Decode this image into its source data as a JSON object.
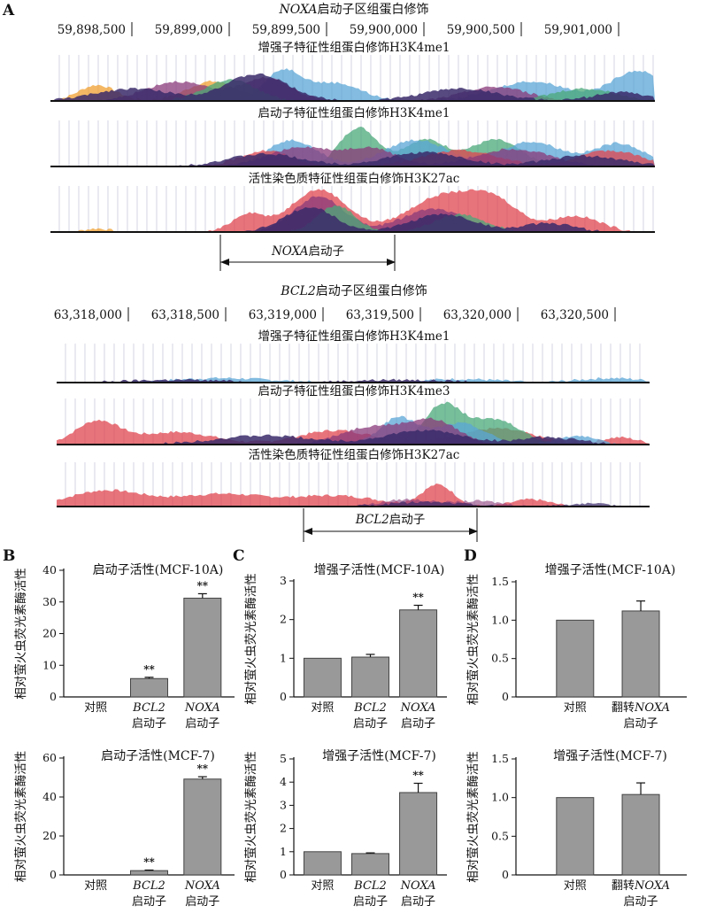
{
  "panel_a": {
    "label": "A",
    "noxa": {
      "title_italic": "NOXA",
      "title_rest": "启动子区组蛋白修饰",
      "coords": [
        "59,898,500",
        "59,899,000",
        "59,899,500",
        "59,900,000",
        "59,900,500",
        "59,901,000"
      ],
      "tracks": [
        {
          "title": "增强子特征性组蛋白修饰H3K4me1"
        },
        {
          "title": "启动子特征性组蛋白修饰H3K4me1"
        },
        {
          "title": "活性染色质特征性组蛋白修饰H3K27ac"
        }
      ],
      "promoter_italic": "NOXA",
      "promoter_rest": "启动子"
    },
    "bcl2": {
      "title_italic": "BCL2",
      "title_rest": "启动子区组蛋白修饰",
      "coords": [
        "63,318,000",
        "63,318,500",
        "63,319,000",
        "63,319,500",
        "63,320,000",
        "63,320,500"
      ],
      "tracks": [
        {
          "title": "增强子特征性组蛋白修饰H3K4me1"
        },
        {
          "title": "启动子特征性组蛋白修饰H3K4me3"
        },
        {
          "title": "活性染色质特征性组蛋白修饰H3K27ac"
        }
      ],
      "promoter_italic": "BCL2",
      "promoter_rest": "启动子"
    },
    "track_colors": [
      "#e0454f",
      "#4aa87a",
      "#5aa6d6",
      "#3a2a6a",
      "#8a3a7a",
      "#f0a030"
    ]
  },
  "chart_data": [
    {
      "type": "bar",
      "panel": "B",
      "title": "启动子活性(MCF-10A)",
      "ylabel": "相对萤火虫荧光素酶活性",
      "categories": [
        {
          "italic": "",
          "line1": "对照",
          "line2": ""
        },
        {
          "italic": "BCL2",
          "line1": "",
          "line2": "启动子"
        },
        {
          "italic": "NOXA",
          "line1": "",
          "line2": "启动子"
        }
      ],
      "values": [
        0,
        5.8,
        31.2
      ],
      "errors": [
        0,
        0.4,
        1.4
      ],
      "significance": [
        "",
        "**",
        "**"
      ],
      "ylim": [
        0,
        40
      ],
      "yticks": [
        0,
        10,
        20,
        30,
        40
      ]
    },
    {
      "type": "bar",
      "panel": "",
      "title": "启动子活性(MCF-7)",
      "ylabel": "相对萤火虫荧光素酶活性",
      "categories": [
        {
          "italic": "",
          "line1": "对照",
          "line2": ""
        },
        {
          "italic": "BCL2",
          "line1": "",
          "line2": "启动子"
        },
        {
          "italic": "NOXA",
          "line1": "",
          "line2": "启动子"
        }
      ],
      "values": [
        0,
        2.2,
        49.2
      ],
      "errors": [
        0,
        0.3,
        1.2
      ],
      "significance": [
        "",
        "**",
        "**"
      ],
      "ylim": [
        0,
        60
      ],
      "yticks": [
        0,
        20,
        40,
        60
      ]
    },
    {
      "type": "bar",
      "panel": "C",
      "title": "增强子活性(MCF-10A)",
      "ylabel": "相对萤火虫荧光素酶活性",
      "categories": [
        {
          "italic": "",
          "line1": "对照",
          "line2": ""
        },
        {
          "italic": "BCL2",
          "line1": "",
          "line2": "启动子"
        },
        {
          "italic": "NOXA",
          "line1": "",
          "line2": "启动子"
        }
      ],
      "values": [
        1.0,
        1.03,
        2.25
      ],
      "errors": [
        0,
        0.07,
        0.12
      ],
      "significance": [
        "",
        "",
        "**"
      ],
      "ylim": [
        0,
        3
      ],
      "yticks": [
        0,
        1,
        2,
        3
      ]
    },
    {
      "type": "bar",
      "panel": "",
      "title": "增强子活性(MCF-7)",
      "ylabel": "相对萤火虫荧光素酶活性",
      "categories": [
        {
          "italic": "",
          "line1": "对照",
          "line2": ""
        },
        {
          "italic": "BCL2",
          "line1": "",
          "line2": "启动子"
        },
        {
          "italic": "NOXA",
          "line1": "",
          "line2": "启动子"
        }
      ],
      "values": [
        1.0,
        0.92,
        3.55
      ],
      "errors": [
        0,
        0.03,
        0.4
      ],
      "significance": [
        "",
        "",
        "**"
      ],
      "ylim": [
        0,
        5
      ],
      "yticks": [
        0,
        1,
        2,
        3,
        4,
        5
      ]
    },
    {
      "type": "bar",
      "panel": "D",
      "title": "增强子活性(MCF-10A)",
      "ylabel": "相对萤火虫荧光素酶活性",
      "categories": [
        {
          "italic": "",
          "line1": "对照",
          "line2": ""
        },
        {
          "italic": "NOXA",
          "line1": "翻转",
          "line2": "启动子"
        }
      ],
      "values": [
        1.0,
        1.12
      ],
      "errors": [
        0,
        0.13
      ],
      "significance": [
        "",
        ""
      ],
      "ylim": [
        0,
        1.5
      ],
      "yticks": [
        0,
        0.5,
        1.0,
        1.5
      ]
    },
    {
      "type": "bar",
      "panel": "",
      "title": "增强子活性(MCF-7)",
      "ylabel": "相对萤火虫荧光素酶活性",
      "categories": [
        {
          "italic": "",
          "line1": "对照",
          "line2": ""
        },
        {
          "italic": "NOXA",
          "line1": "翻转",
          "line2": "启动子"
        }
      ],
      "values": [
        1.0,
        1.04
      ],
      "errors": [
        0,
        0.15
      ],
      "significance": [
        "",
        ""
      ],
      "ylim": [
        0,
        1.5
      ],
      "yticks": [
        0,
        0.5,
        1.0,
        1.5
      ]
    }
  ]
}
